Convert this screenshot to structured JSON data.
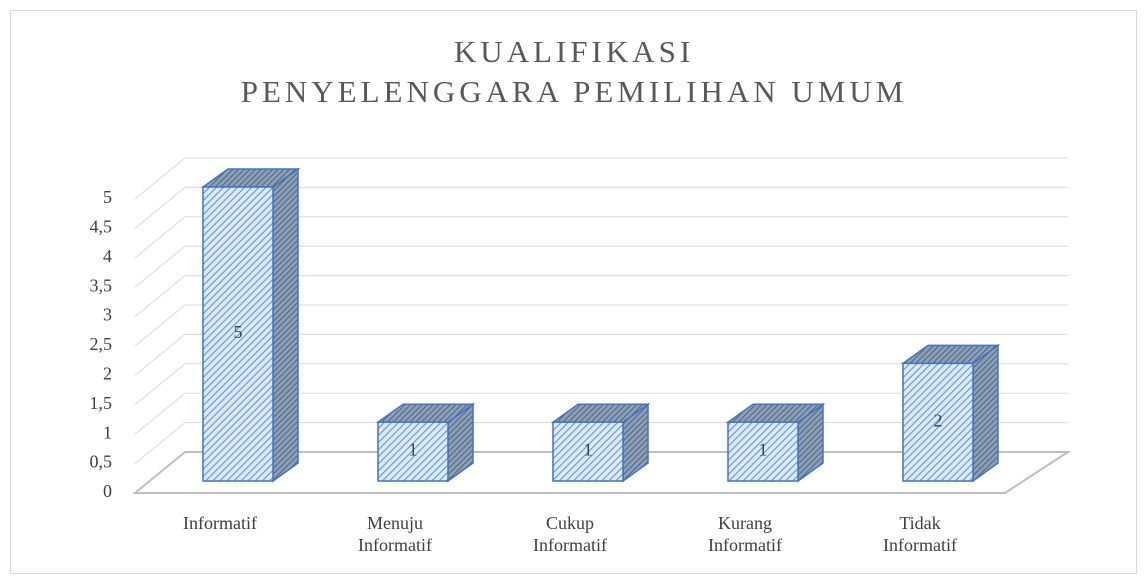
{
  "chart_data": {
    "type": "bar3d",
    "title": "KUALIFIKASI\nPENYELENGGARA PEMILIHAN UMUM",
    "categories": [
      "Informatif",
      "Menuju\nInformatif",
      "Cukup\nInformatif",
      "Kurang\nInformatif",
      "Tidak\nInformatif"
    ],
    "values": [
      5,
      1,
      1,
      1,
      2
    ],
    "color": "#9dc3e6",
    "ylim": [
      0,
      5
    ],
    "yticks": [
      0,
      {
        "value": 0.5,
        "label": "0,5"
      },
      1,
      {
        "value": 1.5,
        "label": "1,5"
      },
      2,
      {
        "value": 2.5,
        "label": "2,5"
      },
      3,
      {
        "value": 3.5,
        "label": "3,5"
      },
      4,
      {
        "value": 4.5,
        "label": "4,5"
      },
      5
    ],
    "grid": true
  }
}
